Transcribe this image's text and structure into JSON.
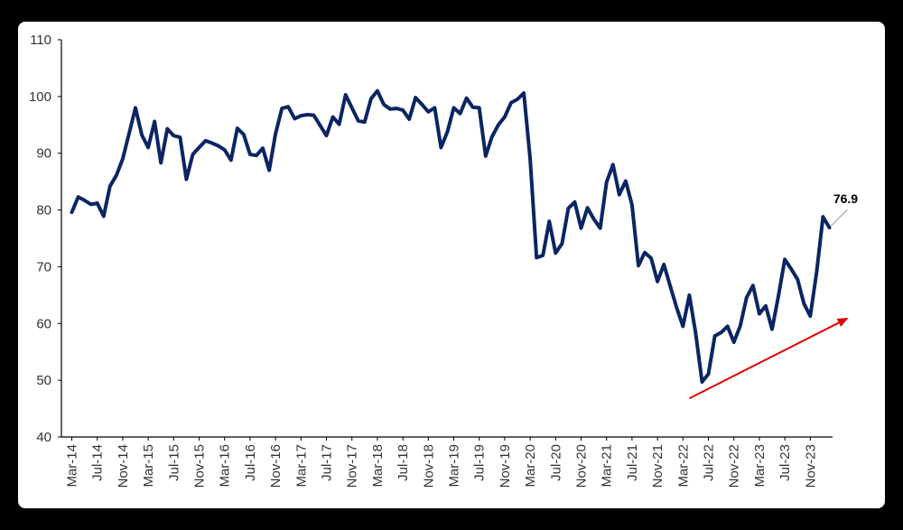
{
  "chart_data": {
    "type": "line",
    "title": "",
    "xlabel": "",
    "ylabel": "",
    "ylim": [
      40,
      110
    ],
    "y_ticks": [
      40,
      50,
      60,
      70,
      80,
      90,
      100,
      110
    ],
    "x_tick_labels": [
      "Mar-14",
      "Jul-14",
      "Nov-14",
      "Mar-15",
      "Jul-15",
      "Nov-15",
      "Mar-16",
      "Jul-16",
      "Nov-16",
      "Mar-17",
      "Jul-17",
      "Nov-17",
      "Mar-18",
      "Jul-18",
      "Nov-18",
      "Mar-19",
      "Jul-19",
      "Nov-19",
      "Mar-20",
      "Jul-20",
      "Nov-20",
      "Mar-21",
      "Jul-21",
      "Nov-21",
      "Mar-22",
      "Jul-22",
      "Nov-22",
      "Mar-23",
      "Jul-23",
      "Nov-23"
    ],
    "x_start": "Mar-14",
    "x_end": "Feb-24",
    "grid": false,
    "legend": "none",
    "series": [
      {
        "color": "#0b2563",
        "values": [
          79.6,
          82.3,
          81.7,
          81.0,
          81.2,
          78.9,
          84.2,
          86.1,
          89.0,
          93.5,
          98.0,
          93.2,
          91.0,
          95.6,
          88.3,
          94.3,
          93.1,
          92.8,
          85.4,
          89.8,
          91.0,
          92.2,
          91.8,
          91.3,
          90.6,
          88.8,
          94.4,
          93.3,
          89.8,
          89.6,
          90.9,
          87.0,
          93.4,
          97.9,
          98.2,
          96.1,
          96.6,
          96.8,
          96.7,
          94.9,
          93.1,
          96.4,
          95.1,
          100.3,
          98.0,
          95.7,
          95.5,
          99.6,
          101.0,
          98.6,
          97.8,
          97.9,
          97.6,
          96.0,
          99.8,
          98.6,
          97.3,
          98.0,
          91.0,
          93.8,
          98.0,
          97.0,
          99.7,
          98.1,
          98.0,
          89.5,
          92.9,
          95.0,
          96.4,
          98.9,
          99.5,
          100.6,
          89.0,
          71.6,
          72.0,
          78.0,
          72.4,
          74.1,
          80.3,
          81.4,
          76.8,
          80.4,
          78.4,
          76.8,
          84.9,
          88.0,
          82.7,
          85.1,
          80.9,
          70.2,
          72.5,
          71.5,
          67.4,
          70.4,
          66.6,
          62.8,
          59.5,
          65.0,
          58.3,
          49.7,
          51.1,
          57.8,
          58.4,
          59.5,
          56.7,
          59.6,
          64.6,
          66.7,
          61.7,
          63.1,
          59.0,
          64.9,
          71.3,
          69.6,
          67.8,
          63.5,
          61.3,
          69.1,
          78.8,
          76.9
        ]
      }
    ],
    "annotations": [
      {
        "text": "76.9",
        "month": "Feb-24",
        "value": 76.9
      }
    ],
    "arrow": {
      "color": "#e00000",
      "from": {
        "month": "Apr-22",
        "value": 46.8
      },
      "to": {
        "month": "May-24",
        "value": 61.0
      }
    }
  }
}
